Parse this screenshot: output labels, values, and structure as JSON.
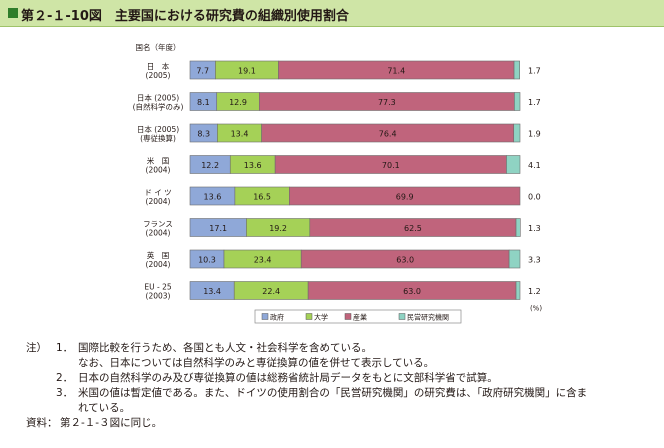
{
  "title": "第２-１-10図　主要国における研究費の組織別使用割合",
  "chart_data": {
    "type": "bar",
    "stacked": true,
    "orientation": "horizontal",
    "header_label": "国名（年度）",
    "unit_label": "(%)",
    "categories": [
      [
        "日　本",
        "(2005)"
      ],
      [
        "日本 (2005)",
        "(自然科学のみ)"
      ],
      [
        "日本 (2005)",
        "(専従換算)"
      ],
      [
        "米　国",
        "(2004)"
      ],
      [
        "ド イ ツ",
        "(2004)"
      ],
      [
        "フランス",
        "(2004)"
      ],
      [
        "英　国",
        "(2004)"
      ],
      [
        "EU - 25",
        "(2003)"
      ]
    ],
    "series": [
      {
        "name": "政府",
        "color": "#8fa8d8",
        "values": [
          7.7,
          8.1,
          8.3,
          12.2,
          13.6,
          17.1,
          10.3,
          13.4
        ]
      },
      {
        "name": "大学",
        "color": "#a5d157",
        "values": [
          19.1,
          12.9,
          13.4,
          13.6,
          16.5,
          19.2,
          23.4,
          22.4
        ]
      },
      {
        "name": "産業",
        "color": "#c0647c",
        "values": [
          71.4,
          77.3,
          76.4,
          70.1,
          69.9,
          62.5,
          63.0,
          63.0
        ]
      },
      {
        "name": "民営研究機関",
        "color": "#8fd3c3",
        "values": [
          1.7,
          1.7,
          1.9,
          4.1,
          0.0,
          1.3,
          3.3,
          1.2
        ]
      }
    ],
    "xlim": [
      0,
      100
    ],
    "legend_position": "bottom"
  },
  "notes": [
    {
      "label": "注）",
      "num": "1．",
      "text": "国際比較を行うため、各国とも人文・社会科学を含めている。"
    },
    {
      "label": "",
      "num": "",
      "text": "なお、日本については自然科学のみと専従換算の値を併せて表示している。"
    },
    {
      "label": "",
      "num": "2．",
      "text": "日本の自然科学のみ及び専従換算の値は総務省統計局データをもとに文部科学省で試算。"
    },
    {
      "label": "",
      "num": "3．",
      "text": "米国の値は暫定値である。また、ドイツの使用割合の「民営研究機関」の研究費は、「政府研究機関」に含ま"
    },
    {
      "label": "",
      "num": "",
      "text": "れている。"
    },
    {
      "label": "資料：",
      "num": "",
      "text": "第２-１-３図に同じ。"
    }
  ]
}
